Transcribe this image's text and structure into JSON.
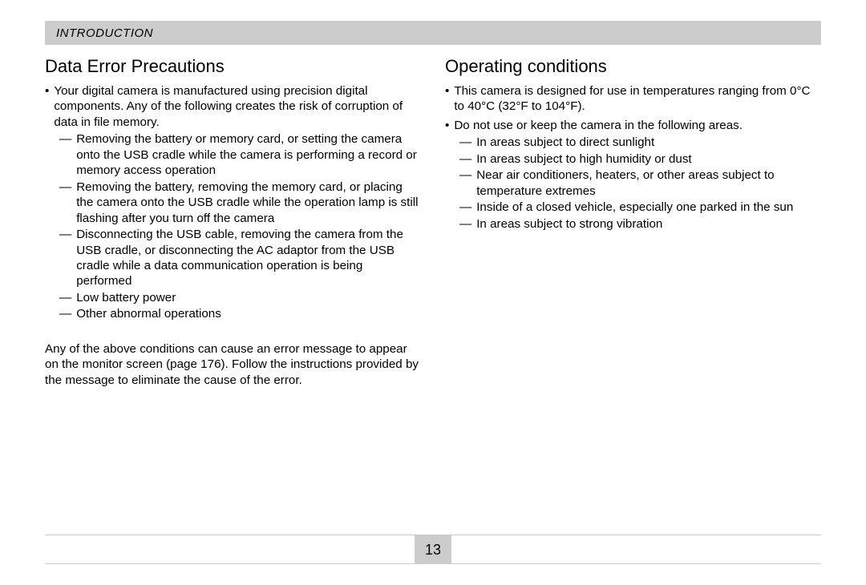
{
  "header": {
    "title": "INTRODUCTION"
  },
  "left": {
    "title": "Data Error Precautions",
    "intro": "Your digital camera is manufactured using precision digital components. Any of the following creates the risk of corruption of data in file memory.",
    "dashes": [
      "Removing the battery or memory card, or setting the camera onto the USB cradle while the camera is performing a record or memory access operation",
      "Removing the battery, removing the memory card, or placing the camera onto the USB cradle while the operation lamp is still flashing after you turn off the camera",
      "Disconnecting the USB cable, removing the camera from the USB cradle, or disconnecting the AC adaptor from the USB cradle while a data communication operation is being performed",
      "Low battery power",
      "Other abnormal operations"
    ],
    "closing": "Any of the above conditions can cause an error message to appear on the monitor screen (page 176). Follow the instructions provided by the message to eliminate the cause of the error."
  },
  "right": {
    "title": "Operating conditions",
    "bullets": [
      {
        "text": "This camera is designed for use in temperatures ranging from 0°C to 40°C (32°F to 104°F).",
        "dashes": []
      },
      {
        "text": "Do not use or keep the camera in the following areas.",
        "dashes": [
          "In areas subject to direct sunlight",
          "In areas subject to high humidity or dust",
          "Near air conditioners, heaters, or other areas subject to temperature extremes",
          "Inside of a closed vehicle, especially one parked in the sun",
          "In areas subject to strong vibration"
        ]
      }
    ]
  },
  "page_number": "13",
  "colors": {
    "bar": "#cccccc",
    "text": "#000000",
    "background": "#ffffff"
  }
}
